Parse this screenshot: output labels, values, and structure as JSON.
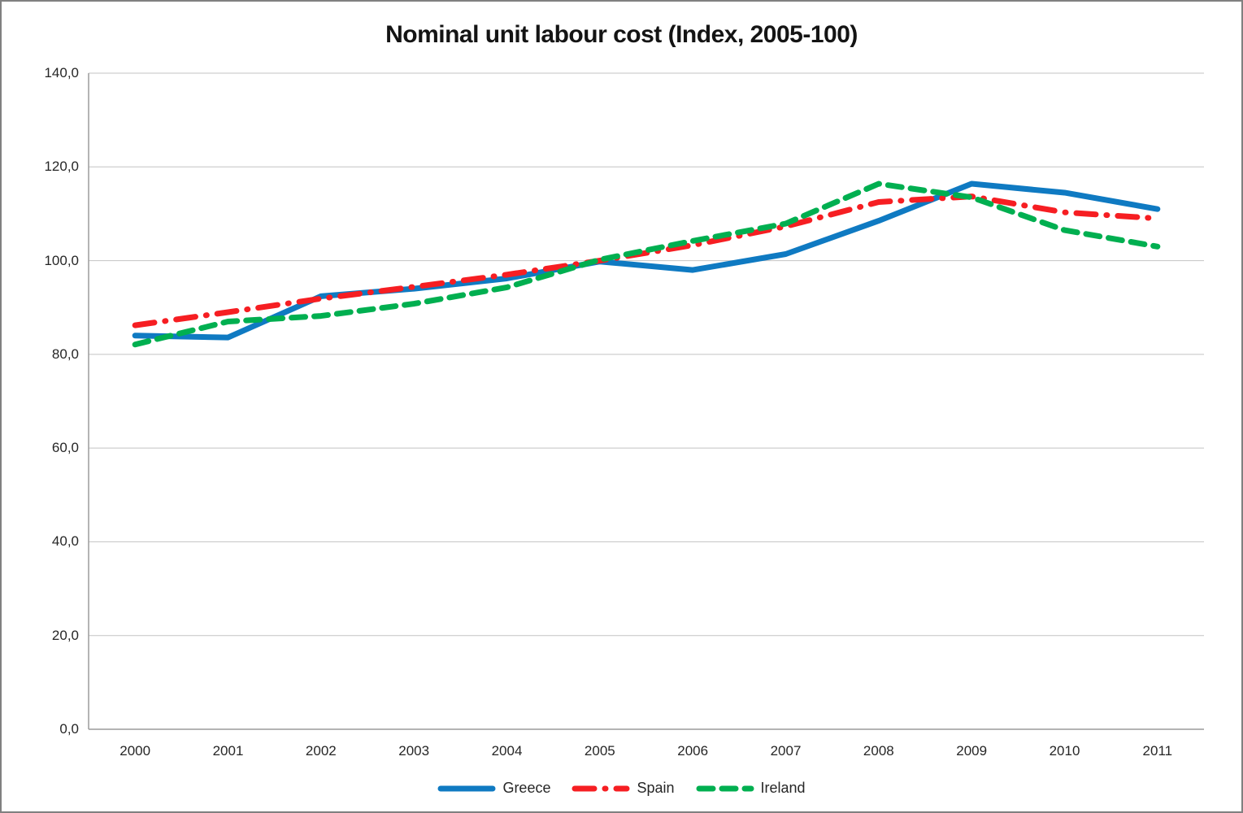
{
  "chart_data": {
    "type": "line",
    "title": "Nominal unit labour cost (Index, 2005-100)",
    "categories": [
      "2000",
      "2001",
      "2002",
      "2003",
      "2004",
      "2005",
      "2006",
      "2007",
      "2008",
      "2009",
      "2010",
      "2011"
    ],
    "series": [
      {
        "name": "Greece",
        "color": "#0f7ac2",
        "dash": "",
        "values": [
          84.0,
          83.6,
          92.4,
          94.0,
          96.2,
          99.8,
          98.0,
          101.4,
          108.5,
          116.4,
          114.5,
          111.0
        ]
      },
      {
        "name": "Spain",
        "color": "#f61e22",
        "dash": "24 13 1 13",
        "values": [
          86.2,
          89.0,
          91.9,
          94.4,
          97.0,
          100.0,
          103.3,
          107.3,
          112.5,
          113.7,
          110.3,
          109.0
        ]
      },
      {
        "name": "Ireland",
        "color": "#00af50",
        "dash": "17 11",
        "values": [
          82.1,
          87.0,
          88.2,
          90.8,
          94.3,
          100.2,
          104.2,
          107.9,
          116.4,
          113.5,
          106.5,
          103.0
        ]
      }
    ],
    "yticks": [
      {
        "label": "0,0",
        "value": 0
      },
      {
        "label": "20,0",
        "value": 20
      },
      {
        "label": "40,0",
        "value": 40
      },
      {
        "label": "60,0",
        "value": 60
      },
      {
        "label": "80,0",
        "value": 80
      },
      {
        "label": "100,0",
        "value": 100
      },
      {
        "label": "120,0",
        "value": 120
      },
      {
        "label": "140,0",
        "value": 140
      }
    ],
    "ylim": [
      0,
      140
    ],
    "xlabel": "",
    "ylabel": "",
    "grid": "horizontal",
    "legend_position": "bottom-center",
    "colors": {
      "gridline": "#c3c3c3",
      "axis": "#9c9c9c",
      "tick_text": "#262626",
      "title_text": "#141414",
      "frame_border": "#808080",
      "background": "#ffffff"
    }
  }
}
